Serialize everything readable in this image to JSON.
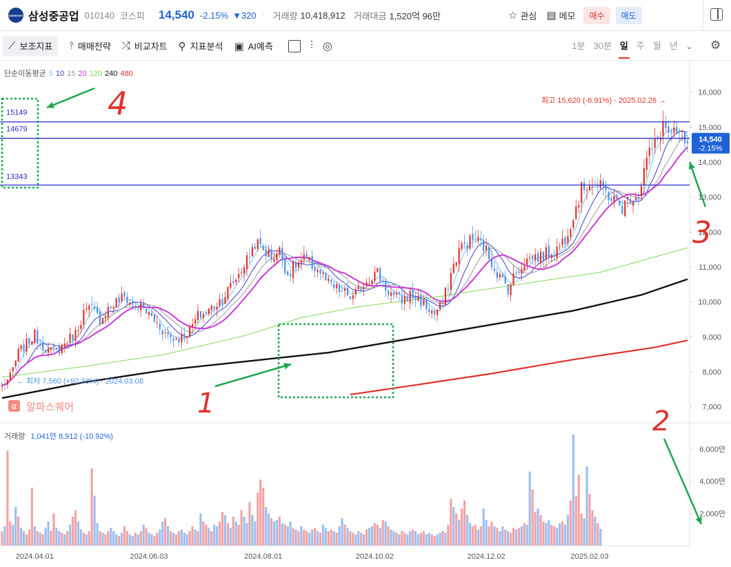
{
  "header": {
    "logo_text": "SAMSUNG",
    "stock_name": "삼성중공업",
    "stock_code": "010140",
    "market": "코스피",
    "price": "14,540",
    "change_pct": "-2.15%",
    "change_abs": "▼320",
    "volume_label": "거래량",
    "volume_value": "10,418,912",
    "amount_label": "거래대금",
    "amount_value": "1,520억 96만",
    "watch_label": "관심",
    "memo_label": "메모",
    "buy_label": "매수",
    "sell_label": "매도",
    "watch_icon": "star-icon",
    "memo_icon": "memo-icon"
  },
  "toolbar": {
    "items": [
      {
        "label": "보조지표",
        "icon": "indicator-icon"
      },
      {
        "label": "매매전략",
        "icon": "strategy-icon"
      },
      {
        "label": "비교차트",
        "icon": "compare-icon"
      },
      {
        "label": "지표분석",
        "icon": "analysis-icon"
      },
      {
        "label": "AI예측",
        "icon": "ai-icon"
      }
    ],
    "periods": [
      "1분",
      "30분",
      "일",
      "주",
      "월",
      "년"
    ],
    "active_period": "일"
  },
  "colors": {
    "up": "#e0312b",
    "down": "#4d8ee8",
    "accent": "#1f62d6",
    "ma5": "#74c2f2",
    "ma10": "#3c3cc9",
    "ma15": "#9a9a9a",
    "ma20": "#c93ad6",
    "ma120": "#7ed957",
    "ma240": "#111111",
    "ma480": "#e0312b",
    "hline": "#2b2bd0",
    "annotation_green": "#1aa84c",
    "annotation_red": "#e0312b"
  },
  "chart_data": [
    {
      "type": "line",
      "subtype": "candlestick",
      "ma_legend": {
        "label": "단순이동평균",
        "periods": [
          "5",
          "10",
          "15",
          "20",
          "120",
          "240",
          "480"
        ]
      },
      "x_ticks": [
        "2024.04.01",
        "2024.06.03",
        "2024.08.01",
        "2024.10.02",
        "2024.12.02",
        "2025.02.03"
      ],
      "x_tick_index": [
        12,
        54,
        96,
        137,
        178,
        216
      ],
      "y_ticks": [
        "7,000",
        "8,000",
        "9,000",
        "10,000",
        "11,000",
        "12,000",
        "13,000",
        "14,000",
        "15,000",
        "16,000"
      ],
      "ylim": [
        6600,
        16900
      ],
      "current_price": {
        "value": 14540,
        "label": "14,540",
        "change": "-2.15%"
      },
      "high_annotation": "최고 15,620 (-6.91%) - 2025.02.26 →",
      "low_annotation": "← 최저 7,560 (+92.33%) - 2024.03.08",
      "horizontal_lines": [
        {
          "value": 15149,
          "label": "15149"
        },
        {
          "value": 14679,
          "label": "14679"
        },
        {
          "value": 13343,
          "label": "13343"
        }
      ],
      "price_series": [
        {
          "x": 0,
          "close": 7600
        },
        {
          "x": 3,
          "close": 7850
        },
        {
          "x": 6,
          "close": 8550
        },
        {
          "x": 9,
          "close": 8800
        },
        {
          "x": 12,
          "close": 9050
        },
        {
          "x": 15,
          "close": 8750
        },
        {
          "x": 18,
          "close": 8550
        },
        {
          "x": 21,
          "close": 8650
        },
        {
          "x": 24,
          "close": 8900
        },
        {
          "x": 27,
          "close": 9100
        },
        {
          "x": 30,
          "close": 9700
        },
        {
          "x": 33,
          "close": 9800
        },
        {
          "x": 36,
          "close": 9500
        },
        {
          "x": 39,
          "close": 9800
        },
        {
          "x": 42,
          "close": 10000
        },
        {
          "x": 45,
          "close": 10150
        },
        {
          "x": 48,
          "close": 9900
        },
        {
          "x": 51,
          "close": 9850
        },
        {
          "x": 54,
          "close": 9650
        },
        {
          "x": 57,
          "close": 9400
        },
        {
          "x": 60,
          "close": 9100
        },
        {
          "x": 63,
          "close": 8950
        },
        {
          "x": 66,
          "close": 9000
        },
        {
          "x": 69,
          "close": 9200
        },
        {
          "x": 72,
          "close": 9600
        },
        {
          "x": 75,
          "close": 9700
        },
        {
          "x": 78,
          "close": 9900
        },
        {
          "x": 81,
          "close": 10100
        },
        {
          "x": 84,
          "close": 10450
        },
        {
          "x": 87,
          "close": 10800
        },
        {
          "x": 90,
          "close": 11200
        },
        {
          "x": 93,
          "close": 11700
        },
        {
          "x": 96,
          "close": 11500
        },
        {
          "x": 99,
          "close": 11300
        },
        {
          "x": 102,
          "close": 11450
        },
        {
          "x": 105,
          "close": 10800
        },
        {
          "x": 108,
          "close": 11050
        },
        {
          "x": 111,
          "close": 11200
        },
        {
          "x": 114,
          "close": 11050
        },
        {
          "x": 117,
          "close": 10850
        },
        {
          "x": 120,
          "close": 10500
        },
        {
          "x": 123,
          "close": 10350
        },
        {
          "x": 126,
          "close": 10250
        },
        {
          "x": 129,
          "close": 10100
        },
        {
          "x": 132,
          "close": 10450
        },
        {
          "x": 135,
          "close": 10700
        },
        {
          "x": 138,
          "close": 10850
        },
        {
          "x": 141,
          "close": 10400
        },
        {
          "x": 144,
          "close": 10150
        },
        {
          "x": 147,
          "close": 10050
        },
        {
          "x": 150,
          "close": 10200
        },
        {
          "x": 153,
          "close": 10100
        },
        {
          "x": 156,
          "close": 9850
        },
        {
          "x": 159,
          "close": 9650
        },
        {
          "x": 162,
          "close": 9950
        },
        {
          "x": 165,
          "close": 10800
        },
        {
          "x": 168,
          "close": 11500
        },
        {
          "x": 171,
          "close": 11700
        },
        {
          "x": 174,
          "close": 11800
        },
        {
          "x": 177,
          "close": 11600
        },
        {
          "x": 180,
          "close": 11150
        },
        {
          "x": 183,
          "close": 10700
        },
        {
          "x": 186,
          "close": 10400
        },
        {
          "x": 189,
          "close": 10850
        },
        {
          "x": 192,
          "close": 11150
        },
        {
          "x": 195,
          "close": 11300
        },
        {
          "x": 198,
          "close": 11300
        },
        {
          "x": 201,
          "close": 11400
        },
        {
          "x": 204,
          "close": 11500
        },
        {
          "x": 207,
          "close": 11850
        },
        {
          "x": 210,
          "close": 12500
        },
        {
          "x": 213,
          "close": 13200
        },
        {
          "x": 216,
          "close": 13450
        },
        {
          "x": 219,
          "close": 13300
        },
        {
          "x": 222,
          "close": 13150
        },
        {
          "x": 225,
          "close": 12900
        },
        {
          "x": 228,
          "close": 12700
        },
        {
          "x": 231,
          "close": 13000
        },
        {
          "x": 234,
          "close": 13100
        },
        {
          "x": 237,
          "close": 14100
        },
        {
          "x": 240,
          "close": 14500
        },
        {
          "x": 243,
          "close": 15100
        },
        {
          "x": 246,
          "close": 14700
        },
        {
          "x": 249,
          "close": 14800
        },
        {
          "x": 252,
          "close": 14540
        }
      ],
      "ma_lines": [
        {
          "period": "120",
          "points": [
            {
              "x": 0,
              "y": 7850
            },
            {
              "x": 30,
              "y": 8150
            },
            {
              "x": 60,
              "y": 8500
            },
            {
              "x": 90,
              "y": 9050
            },
            {
              "x": 110,
              "y": 9550
            },
            {
              "x": 130,
              "y": 9850
            },
            {
              "x": 160,
              "y": 10150
            },
            {
              "x": 190,
              "y": 10500
            },
            {
              "x": 220,
              "y": 10850
            },
            {
              "x": 252,
              "y": 11550
            }
          ]
        },
        {
          "period": "240",
          "points": [
            {
              "x": 0,
              "y": 7250
            },
            {
              "x": 30,
              "y": 7700
            },
            {
              "x": 60,
              "y": 8050
            },
            {
              "x": 90,
              "y": 8300
            },
            {
              "x": 120,
              "y": 8550
            },
            {
              "x": 150,
              "y": 8950
            },
            {
              "x": 180,
              "y": 9350
            },
            {
              "x": 210,
              "y": 9750
            },
            {
              "x": 235,
              "y": 10200
            },
            {
              "x": 252,
              "y": 10650
            }
          ]
        },
        {
          "period": "480",
          "points": [
            {
              "x": 128,
              "y": 7350
            },
            {
              "x": 150,
              "y": 7600
            },
            {
              "x": 180,
              "y": 7950
            },
            {
              "x": 210,
              "y": 8350
            },
            {
              "x": 240,
              "y": 8700
            },
            {
              "x": 252,
              "y": 8900
            }
          ]
        }
      ]
    },
    {
      "type": "bar",
      "subtype": "volume",
      "label": "거래량",
      "last_value": "1,041만 8,912 (-10.92%)",
      "y_ticks": [
        "2,000만",
        "4,000만",
        "6,000만"
      ],
      "ylim": [
        0,
        7500
      ],
      "unit": "만",
      "values": [
        900,
        1200,
        5900,
        1500,
        1300,
        2400,
        1800,
        1100,
        900,
        700,
        1000,
        3600,
        1200,
        900,
        800,
        700,
        1100,
        1500,
        900,
        2000,
        1100,
        900,
        800,
        700,
        900,
        1300,
        1800,
        2200,
        1500,
        1000,
        800,
        700,
        900,
        4800,
        3100,
        1400,
        900,
        800,
        700,
        900,
        1100,
        900,
        700,
        600,
        800,
        1200,
        900,
        700,
        600,
        800,
        700,
        900,
        1300,
        1100,
        800,
        700,
        600,
        800,
        1000,
        1500,
        1700,
        1200,
        900,
        800,
        700,
        900,
        1000,
        800,
        700,
        900,
        1200,
        1000,
        900,
        2000,
        1500,
        1300,
        1100,
        900,
        1300,
        1200,
        1500,
        2100,
        1900,
        1400,
        1100,
        1800,
        1500,
        1300,
        2200,
        1800,
        1400,
        2700,
        1900,
        1500,
        3300,
        4100,
        3600,
        2400,
        2000,
        1700,
        1500,
        1600,
        1800,
        1400,
        1300,
        1200,
        1500,
        1100,
        1000,
        900,
        1200,
        1000,
        900,
        800,
        1000,
        1100,
        900,
        800,
        1300,
        1100,
        900,
        1000,
        900,
        800,
        1200,
        1700,
        1300,
        1100,
        900,
        800,
        700,
        900,
        800,
        700,
        1000,
        1100,
        1200,
        1400,
        1300,
        1100,
        1600,
        1500,
        1200,
        1000,
        900,
        800,
        700,
        900,
        800,
        700,
        900,
        1000,
        900,
        700,
        800,
        900,
        700,
        800,
        700,
        600,
        700,
        800,
        900,
        800,
        1300,
        2900,
        2400,
        2000,
        1600,
        2300,
        2800,
        1900,
        1400,
        1200,
        1300,
        1000,
        1200,
        2300,
        1600,
        1200,
        1500,
        1200,
        1100,
        900,
        1200,
        1000,
        900,
        800,
        1100,
        1000,
        1100,
        1200,
        1400,
        1300,
        4600,
        3500,
        2100,
        2300,
        1900,
        1500,
        1400,
        1600,
        1300,
        1200,
        1100,
        1400,
        1500,
        1300,
        1900,
        2800,
        6900,
        3100,
        4400,
        2000,
        1700,
        4900,
        3200,
        2200,
        1800,
        1400,
        1041
      ],
      "up_flags": "rbrrbbrbbrrrbrbrbbrrbbrbrbrrbbrbrrbbrbrrbbbrbrrbbrbrbrbbrrbbrbrbrrbbbrrbrbrrbrbbrrbrbrbrrbbrbbrrrbbrbbrbrbbrbrbrrbbrbrbbrrbrbbrbrrbbrbrbbrrbrbrbbrbrrbbrbbrrbbrrbbrbrrbrbrrbbrrbrbbrrbrbbrbrrbrbrbbrrbrrbbrrbbrbbrbrrrbbrrbrbbrrbrbrbbrrbrbbrbrbb"
    }
  ],
  "watermark": {
    "text": "알파스퀘어",
    "icon": "alphasquare-logo-icon"
  },
  "annotations": {
    "red_numbers": [
      "1",
      "2",
      "3",
      "4"
    ]
  }
}
